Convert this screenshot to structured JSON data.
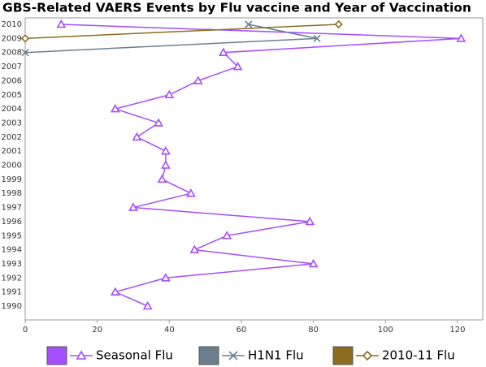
{
  "chart_data": {
    "type": "line",
    "orientation": "horizontal",
    "title": "GBS-Related VAERS Events by Flu vaccine and Year of Vaccination",
    "categories": [
      "1990",
      "1991",
      "1992",
      "1993",
      "1994",
      "1995",
      "1996",
      "1997",
      "1998",
      "1999",
      "2000",
      "2001",
      "2002",
      "2003",
      "2004",
      "2005",
      "2006",
      "2007",
      "2008",
      "2009",
      "2010"
    ],
    "series": [
      {
        "name": "Seasonal Flu",
        "color": "#a64dff",
        "marker": "triangle",
        "values": [
          34,
          25,
          39,
          80,
          47,
          56,
          79,
          30,
          46,
          38,
          39,
          39,
          31,
          37,
          25,
          40,
          48,
          59,
          55,
          121,
          10
        ]
      },
      {
        "name": "H1N1 Flu",
        "color": "#6b7f8f",
        "marker": "cross",
        "values": [
          null,
          null,
          null,
          null,
          null,
          null,
          null,
          null,
          null,
          null,
          null,
          null,
          null,
          null,
          null,
          null,
          null,
          null,
          0,
          81,
          62
        ]
      },
      {
        "name": "2010-11 Flu",
        "color": "#8c6d1f",
        "marker": "diamond",
        "values": [
          null,
          null,
          null,
          null,
          null,
          null,
          null,
          null,
          null,
          null,
          null,
          null,
          null,
          null,
          null,
          null,
          null,
          null,
          null,
          0,
          87
        ]
      }
    ],
    "xlim": [
      0,
      127
    ],
    "xticks": [
      0,
      20,
      40,
      60,
      80,
      100,
      120
    ],
    "grid": false,
    "legend": "bottom"
  }
}
